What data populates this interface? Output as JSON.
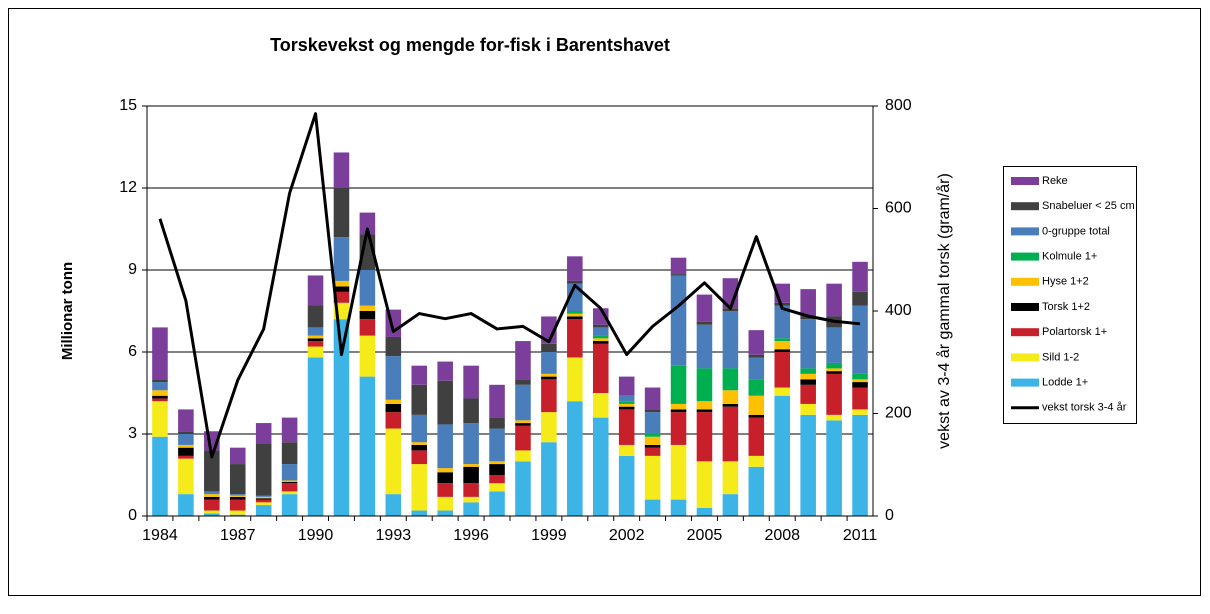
{
  "chart_data": {
    "type": "bar",
    "stacked": true,
    "title": "Torskevekst og mengde for-fisk  i Barentshavet",
    "y_label": "Millionar tonn",
    "y2_label": "vekst av 3-4 år gammal torsk (gram/år)",
    "categories": [
      "1984",
      null,
      null,
      "1987",
      null,
      null,
      "1990",
      null,
      null,
      "1993",
      null,
      null,
      "1996",
      null,
      null,
      "1999",
      null,
      null,
      "2002",
      null,
      null,
      "2005",
      null,
      null,
      "2008",
      null,
      null,
      "2011"
    ],
    "ylim": [
      0,
      15
    ],
    "yticks": [
      0,
      3,
      6,
      9,
      12,
      15
    ],
    "y2lim": [
      0,
      800
    ],
    "y2ticks": [
      0,
      200,
      400,
      600,
      800
    ],
    "grid": true,
    "legend": "right",
    "series": [
      {
        "name": "Lodde 1+",
        "color": "#3cb4e6",
        "values": [
          2.9,
          0.8,
          0.1,
          0.05,
          0.4,
          0.8,
          5.8,
          7.2,
          5.1,
          0.8,
          0.2,
          0.2,
          0.5,
          0.9,
          2.0,
          2.7,
          4.2,
          3.6,
          2.2,
          0.6,
          0.6,
          0.3,
          0.8,
          1.8,
          4.4,
          3.7,
          3.5,
          3.7
        ]
      },
      {
        "name": "Sild 1-2",
        "color": "#f5eb1a",
        "values": [
          1.3,
          1.3,
          0.1,
          0.15,
          0.1,
          0.1,
          0.4,
          0.6,
          1.5,
          2.4,
          1.7,
          0.5,
          0.2,
          0.3,
          0.4,
          1.1,
          1.6,
          0.9,
          0.4,
          1.6,
          2.0,
          1.7,
          1.2,
          0.4,
          0.3,
          0.4,
          0.2,
          0.2
        ]
      },
      {
        "name": "Polartorsk 1+",
        "color": "#c8202a",
        "values": [
          0.1,
          0.1,
          0.4,
          0.4,
          0.1,
          0.3,
          0.2,
          0.4,
          0.6,
          0.6,
          0.5,
          0.5,
          0.5,
          0.3,
          0.9,
          1.2,
          1.4,
          1.8,
          1.3,
          0.3,
          1.2,
          1.8,
          2.0,
          1.4,
          1.3,
          0.7,
          1.5,
          0.8
        ]
      },
      {
        "name": "Torsk 1+2",
        "color": "#000000",
        "values": [
          0.1,
          0.3,
          0.1,
          0.1,
          0.05,
          0.05,
          0.1,
          0.2,
          0.3,
          0.3,
          0.2,
          0.4,
          0.6,
          0.4,
          0.1,
          0.1,
          0.1,
          0.1,
          0.1,
          0.1,
          0.1,
          0.1,
          0.1,
          0.1,
          0.1,
          0.2,
          0.1,
          0.2
        ]
      },
      {
        "name": "Hyse 1+2",
        "color": "#ffc000",
        "values": [
          0.2,
          0.1,
          0.1,
          0.05,
          0.05,
          0.05,
          0.1,
          0.2,
          0.2,
          0.15,
          0.1,
          0.15,
          0.1,
          0.1,
          0.1,
          0.1,
          0.1,
          0.1,
          0.1,
          0.3,
          0.2,
          0.3,
          0.5,
          0.7,
          0.3,
          0.2,
          0.1,
          0.1
        ]
      },
      {
        "name": "Kolmule 1+",
        "color": "#00b050",
        "values": [
          0,
          0,
          0,
          0,
          0,
          0,
          0,
          0,
          0,
          0,
          0,
          0,
          0,
          0,
          0,
          0,
          0.1,
          0.1,
          0.1,
          0.1,
          1.4,
          1.2,
          0.8,
          0.6,
          0.1,
          0.2,
          0.2,
          0.2
        ]
      },
      {
        "name": "0-gruppe total",
        "color": "#4a7ebb",
        "values": [
          0.3,
          0.4,
          0.1,
          0.05,
          0.05,
          0.6,
          0.3,
          1.6,
          1.3,
          1.6,
          1.0,
          1.6,
          1.5,
          1.2,
          1.3,
          0.8,
          1.0,
          0.3,
          0.2,
          0.8,
          3.3,
          1.6,
          2.1,
          0.8,
          1.2,
          1.8,
          1.3,
          2.5
        ]
      },
      {
        "name": "Snabeluer < 25 cm",
        "color": "#404040",
        "values": [
          0.1,
          0.1,
          1.5,
          1.1,
          1.9,
          0.8,
          0.8,
          1.8,
          1.3,
          0.7,
          1.1,
          1.6,
          0.9,
          0.4,
          0.2,
          0.3,
          0.1,
          0.1,
          0,
          0.1,
          0.05,
          0.1,
          0.1,
          0.1,
          0.1,
          0.1,
          0.4,
          0.5
        ]
      },
      {
        "name": "Reke",
        "color": "#7b3f9b",
        "values": [
          1.9,
          0.8,
          0.7,
          0.6,
          0.75,
          0.9,
          1.1,
          1.3,
          0.8,
          1.0,
          0.7,
          0.7,
          1.2,
          1.2,
          1.4,
          1.0,
          0.9,
          0.6,
          0.7,
          0.8,
          0.6,
          1.0,
          1.1,
          0.9,
          0.7,
          1.0,
          1.2,
          1.1
        ]
      },
      {
        "name": "vekst torsk 3-4 år",
        "color": "#000000",
        "type": "line",
        "axis": "y2",
        "values": [
          580,
          420,
          115,
          265,
          365,
          630,
          785,
          315,
          560,
          360,
          395,
          385,
          395,
          365,
          370,
          340,
          450,
          405,
          315,
          370,
          410,
          455,
          405,
          545,
          405,
          390,
          380,
          375
        ]
      }
    ]
  }
}
